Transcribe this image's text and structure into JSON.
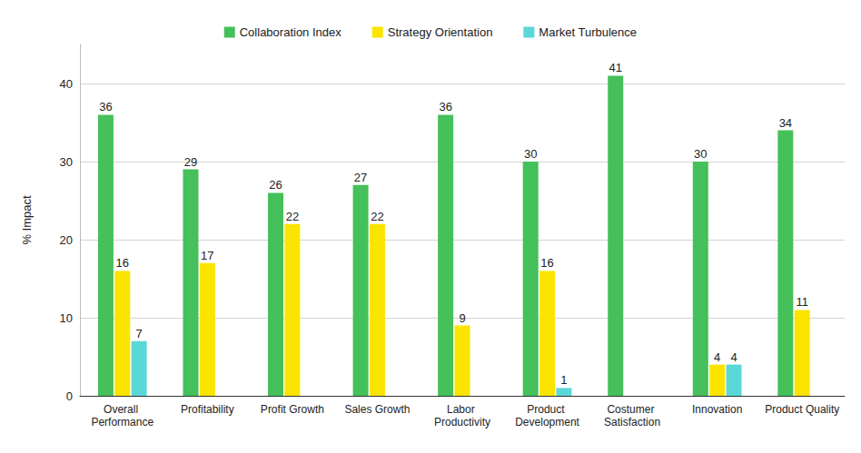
{
  "chart_data": {
    "type": "bar",
    "categories": [
      "Overall Performance",
      "Profitability",
      "Profit Growth",
      "Sales Growth",
      "Labor Productivity",
      "Product Development",
      "Costumer Satisfaction",
      "Innovation",
      "Product Quality"
    ],
    "series": [
      {
        "name": "Collaboration Index",
        "color": "#45c05a",
        "values": [
          36,
          29,
          26,
          27,
          36,
          30,
          41,
          30,
          34
        ]
      },
      {
        "name": "Strategy Orientation",
        "color": "#fbe400",
        "values": [
          16,
          17,
          22,
          22,
          9,
          16,
          null,
          4,
          11
        ]
      },
      {
        "name": "Market Turbulence",
        "color": "#5ad8d8",
        "values": [
          7,
          null,
          null,
          null,
          null,
          1,
          null,
          4,
          null
        ]
      }
    ],
    "ylabel": "% Impact",
    "ylim": [
      0,
      45
    ],
    "yticks": [
      0,
      10,
      20,
      30,
      40
    ],
    "grid": true,
    "legend": "top",
    "data_labels": true
  }
}
